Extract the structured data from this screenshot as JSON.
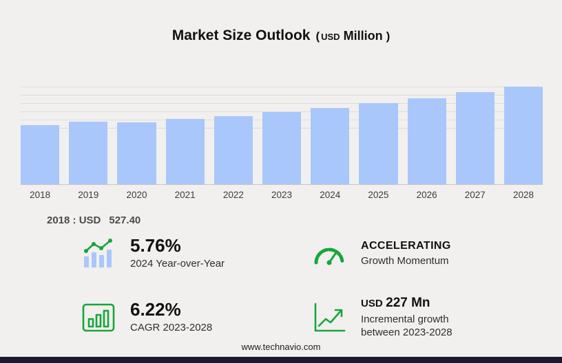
{
  "header": {
    "title": "Market Size Outlook",
    "paren_open": "(",
    "currency": "USD",
    "unit": "Million",
    "paren_close": ")"
  },
  "chart_data": {
    "type": "bar",
    "title": "Market Size Outlook (USD Million)",
    "unit": "USD Million",
    "categories": [
      "2018",
      "2019",
      "2020",
      "2021",
      "2022",
      "2023",
      "2024",
      "2025",
      "2026",
      "2027",
      "2028"
    ],
    "values": [
      527.4,
      556,
      549,
      580,
      608,
      645,
      682,
      722,
      765,
      818,
      872
    ],
    "ylim": [
      0,
      950
    ],
    "grid": true,
    "legend": false,
    "bar_color": "#a9c7fb",
    "annotation": "2018 : USD 527.40"
  },
  "annotation": {
    "prefix": "2018 : USD",
    "value": "527.40"
  },
  "stats": [
    {
      "value": "5.76%",
      "label": "2024 Year-over-Year"
    },
    {
      "value": "ACCELERATING",
      "label": "Growth Momentum"
    },
    {
      "value": "6.22%",
      "label": "CAGR 2023-2028"
    },
    {
      "value_prefix": "USD",
      "value": "227 Mn",
      "label": "Incremental growth between 2023-2028"
    }
  ],
  "footer": {
    "url": "www.technavio.com"
  },
  "colors": {
    "accent_green": "#17a53b",
    "bar_blue": "#a9c7fb",
    "background": "#f1f0ee",
    "bottom_bar": "#191a2e"
  }
}
